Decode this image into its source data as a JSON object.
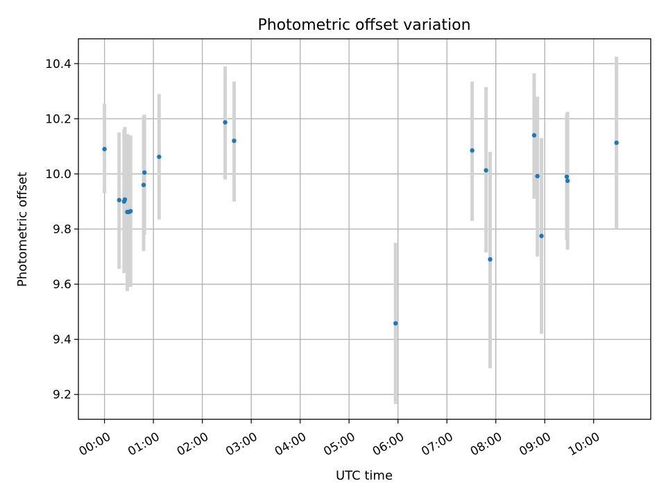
{
  "chart_data": {
    "type": "scatter",
    "title": "Photometric offset variation",
    "xlabel": "UTC time",
    "ylabel": "Photometric offset",
    "xaxis": "time (UTC, HH:MM)",
    "xlim": [
      "23:28",
      "11:10"
    ],
    "ylim": [
      9.11,
      10.49
    ],
    "xticks": [
      "00:00",
      "01:00",
      "02:00",
      "03:00",
      "04:00",
      "05:00",
      "06:00",
      "07:00",
      "08:00",
      "09:00",
      "10:00"
    ],
    "yticks": [
      9.2,
      9.4,
      9.6,
      9.8,
      10.0,
      10.2,
      10.4
    ],
    "grid": true,
    "point_color": "#1f77b4",
    "errorbar_color": "#d3d3d3",
    "points": [
      {
        "t": "00:00",
        "y": 10.09,
        "lo": 9.93,
        "hi": 10.255
      },
      {
        "t": "00:18",
        "y": 9.905,
        "lo": 9.655,
        "hi": 10.15
      },
      {
        "t": "00:24",
        "y": 9.9,
        "lo": 9.64,
        "hi": 10.16
      },
      {
        "t": "00:25",
        "y": 9.907,
        "lo": 9.65,
        "hi": 10.17
      },
      {
        "t": "00:28",
        "y": 9.862,
        "lo": 9.575,
        "hi": 10.145
      },
      {
        "t": "00:30",
        "y": 9.862,
        "lo": 9.6,
        "hi": 10.14
      },
      {
        "t": "00:32",
        "y": 9.865,
        "lo": 9.59,
        "hi": 10.14
      },
      {
        "t": "00:48",
        "y": 9.96,
        "lo": 9.72,
        "hi": 10.21
      },
      {
        "t": "00:49",
        "y": 10.005,
        "lo": 9.78,
        "hi": 10.215
      },
      {
        "t": "01:07",
        "y": 10.062,
        "lo": 9.835,
        "hi": 10.29
      },
      {
        "t": "02:28",
        "y": 10.187,
        "lo": 9.98,
        "hi": 10.39
      },
      {
        "t": "02:39",
        "y": 10.12,
        "lo": 9.9,
        "hi": 10.335
      },
      {
        "t": "05:57",
        "y": 9.458,
        "lo": 9.165,
        "hi": 9.75
      },
      {
        "t": "07:31",
        "y": 10.085,
        "lo": 9.83,
        "hi": 10.335
      },
      {
        "t": "07:48",
        "y": 10.013,
        "lo": 9.715,
        "hi": 10.315
      },
      {
        "t": "07:53",
        "y": 9.69,
        "lo": 9.295,
        "hi": 10.08
      },
      {
        "t": "08:47",
        "y": 10.14,
        "lo": 9.91,
        "hi": 10.365
      },
      {
        "t": "08:51",
        "y": 9.992,
        "lo": 9.7,
        "hi": 10.28
      },
      {
        "t": "08:56",
        "y": 9.775,
        "lo": 9.42,
        "hi": 10.13
      },
      {
        "t": "09:27",
        "y": 9.99,
        "lo": 9.76,
        "hi": 10.22
      },
      {
        "t": "09:28",
        "y": 9.975,
        "lo": 9.725,
        "hi": 10.225
      },
      {
        "t": "10:28",
        "y": 10.113,
        "lo": 9.8,
        "hi": 10.425
      }
    ]
  }
}
